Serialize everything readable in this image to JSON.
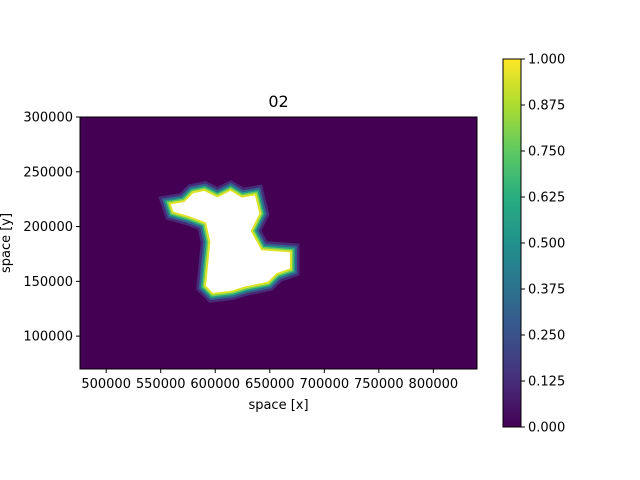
{
  "chart_data": {
    "type": "heatmap",
    "title": "02",
    "xlabel": "space [x]",
    "ylabel": "space [y]",
    "xlim": [
      476000,
      840000
    ],
    "ylim": [
      70000,
      300000
    ],
    "x_ticks": [
      500000,
      550000,
      600000,
      650000,
      700000,
      750000,
      800000
    ],
    "x_tick_labels": [
      "500000",
      "550000",
      "600000",
      "650000",
      "700000",
      "750000",
      "800000"
    ],
    "y_ticks": [
      100000,
      150000,
      200000,
      250000,
      300000
    ],
    "y_tick_labels": [
      "100000",
      "150000",
      "200000",
      "250000",
      "300000"
    ],
    "colorbar": {
      "min": 0.0,
      "max": 1.0,
      "colormap": "viridis",
      "ticks": [
        0.0,
        0.125,
        0.25,
        0.375,
        0.5,
        0.625,
        0.75,
        0.875,
        1.0
      ],
      "tick_labels": [
        "0.000",
        "0.125",
        "0.250",
        "0.375",
        "0.500",
        "0.625",
        "0.750",
        "0.875",
        "1.000"
      ]
    },
    "background_value": 0.0,
    "interior_fill_value": 1.0,
    "interior_fill_color": "#ffffff",
    "region_outline": [
      [
        560000,
        220000
      ],
      [
        572000,
        222000
      ],
      [
        580000,
        230000
      ],
      [
        590000,
        232000
      ],
      [
        602000,
        226000
      ],
      [
        614000,
        232000
      ],
      [
        624000,
        226000
      ],
      [
        636000,
        228000
      ],
      [
        640000,
        212000
      ],
      [
        632000,
        196000
      ],
      [
        642000,
        178000
      ],
      [
        668000,
        176000
      ],
      [
        668000,
        162000
      ],
      [
        656000,
        158000
      ],
      [
        648000,
        150000
      ],
      [
        628000,
        146000
      ],
      [
        615000,
        142000
      ],
      [
        598000,
        140000
      ],
      [
        592000,
        146000
      ],
      [
        594000,
        166000
      ],
      [
        596000,
        186000
      ],
      [
        592000,
        204000
      ],
      [
        576000,
        210000
      ],
      [
        562000,
        214000
      ]
    ],
    "band_levels": [
      0.12,
      0.32,
      0.55,
      0.78,
      0.95
    ]
  },
  "colors": {
    "background": "#440154",
    "frame": "#000000"
  }
}
